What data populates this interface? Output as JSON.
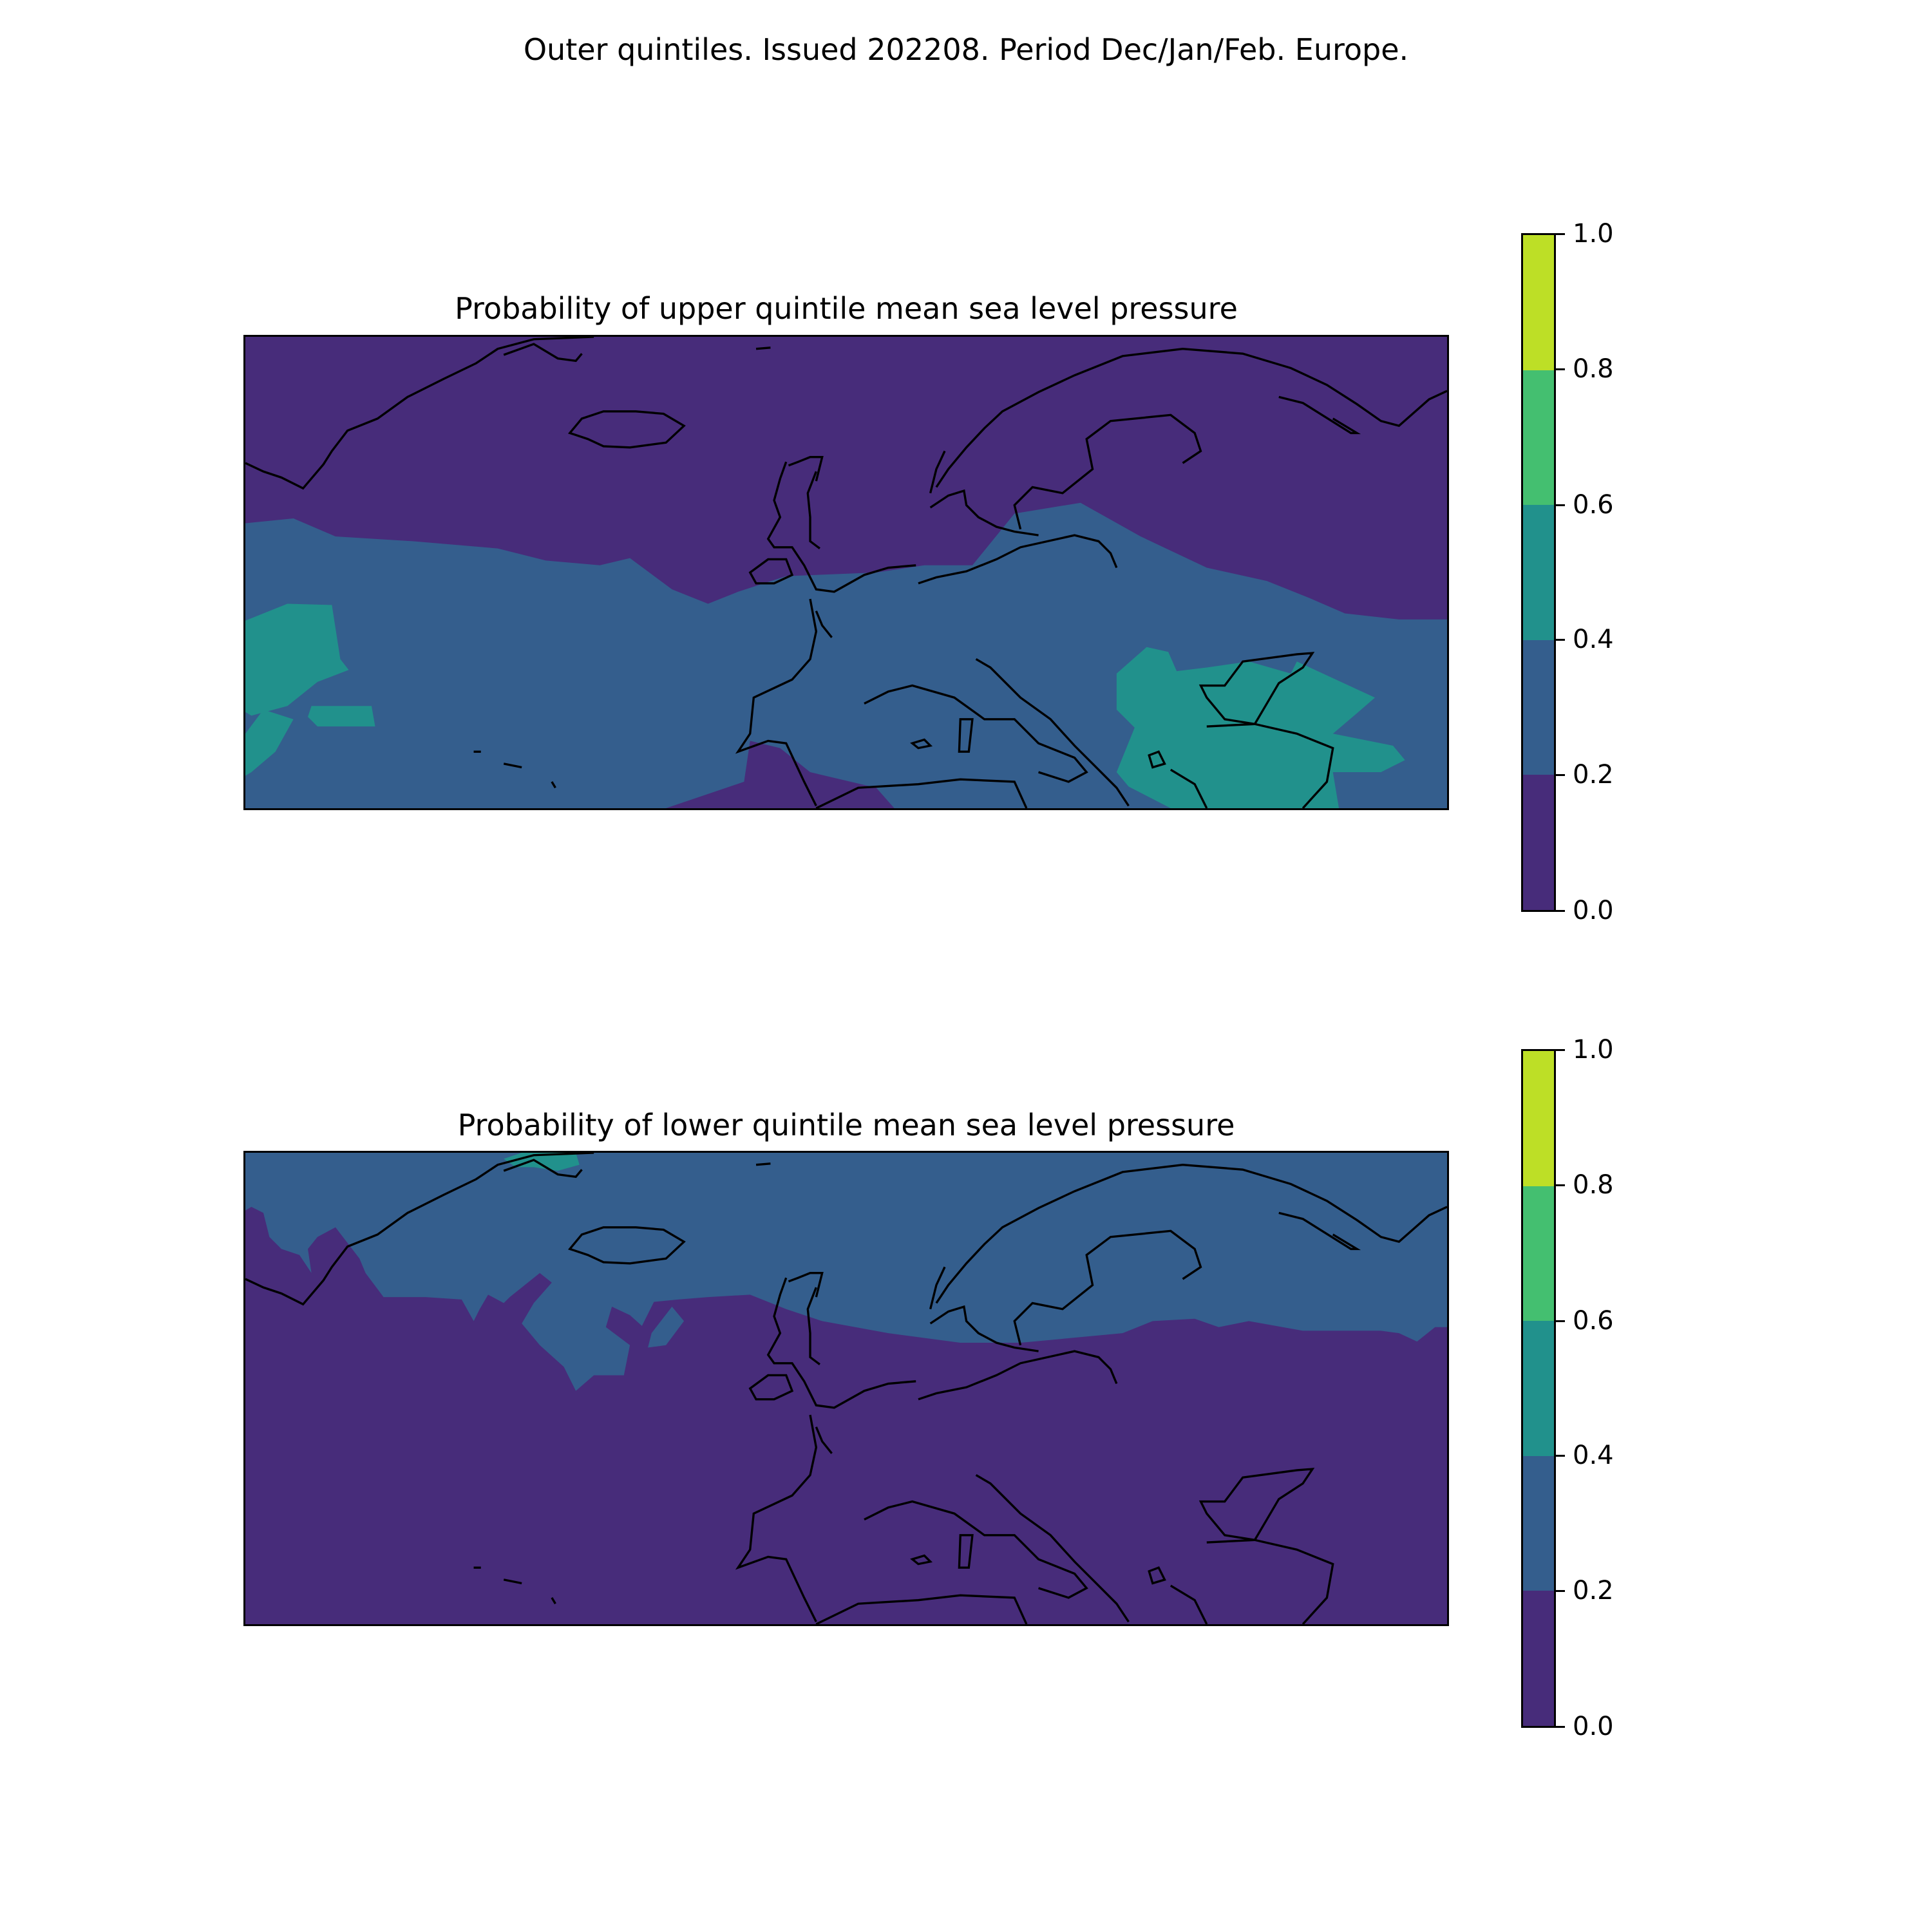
{
  "figure": {
    "suptitle": "Outer quintiles. Issued 202208. Period Dec/Jan/Feb. Europe."
  },
  "colorbar": {
    "ticks": [
      "0.0",
      "0.2",
      "0.4",
      "0.6",
      "0.8",
      "1.0"
    ],
    "bins": [
      {
        "range": [
          0.0,
          0.2
        ],
        "color": "#472c7a"
      },
      {
        "range": [
          0.2,
          0.4
        ],
        "color": "#345e8d"
      },
      {
        "range": [
          0.4,
          0.6
        ],
        "color": "#21918c"
      },
      {
        "range": [
          0.6,
          0.8
        ],
        "color": "#44bf70"
      },
      {
        "range": [
          0.8,
          1.0
        ],
        "color": "#bddf26"
      }
    ]
  },
  "panels": [
    {
      "title": "Probability of upper quintile mean sea level pressure",
      "background_bin": "0.0-0.2",
      "regions": [
        {
          "bin": "0.2-0.4",
          "area": "central latitude band from the Atlantic across Europe"
        },
        {
          "bin": "0.4-0.6",
          "area": "western Atlantic edge, Balkans, Greece, Black Sea and Turkey"
        },
        {
          "bin": "0.0-0.2",
          "area": "north (Greenland, Iceland, Scandinavia) and southern Iberia / North Africa"
        }
      ]
    },
    {
      "title": "Probability of lower quintile mean sea level pressure",
      "background_bin": "0.0-0.2",
      "regions": [
        {
          "bin": "0.2-0.4",
          "area": "northern band: Greenland, Iceland, Scandinavia, northwest Russia"
        },
        {
          "bin": "0.4-0.6",
          "area": "small patch near Greenland top edge"
        },
        {
          "bin": "0.0-0.2",
          "area": "Atlantic, western Europe and Mediterranean"
        }
      ]
    }
  ],
  "chart_data": [
    {
      "type": "heatmap",
      "title": "Probability of upper quintile mean sea level pressure",
      "levels": [
        0.0,
        0.2,
        0.4,
        0.6,
        0.8,
        1.0
      ],
      "colorbar_range": [
        0.0,
        1.0
      ]
    },
    {
      "type": "heatmap",
      "title": "Probability of lower quintile mean sea level pressure",
      "levels": [
        0.0,
        0.2,
        0.4,
        0.6,
        0.8,
        1.0
      ],
      "colorbar_range": [
        0.0,
        1.0
      ]
    }
  ]
}
